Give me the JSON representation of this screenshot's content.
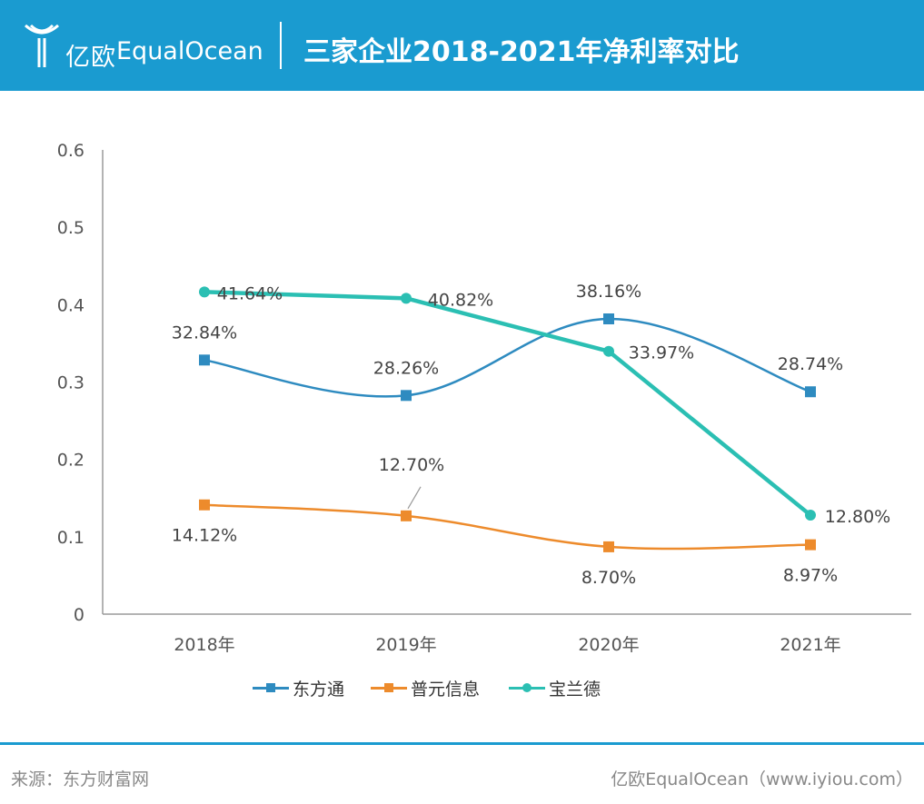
{
  "header": {
    "brand_cn": "亿欧",
    "brand_en": "EqualOcean",
    "title": "三家企业2018-2021年净利率对比"
  },
  "chart_data": {
    "type": "line",
    "title": "三家企业2018-2021年净利率对比",
    "categories": [
      "2018年",
      "2019年",
      "2020年",
      "2021年"
    ],
    "ylim": [
      0,
      0.6
    ],
    "yticks": [
      "0",
      "0.1",
      "0.2",
      "0.3",
      "0.4",
      "0.5",
      "0.6"
    ],
    "grid": false,
    "legend_position": "bottom",
    "series": [
      {
        "name": "东方通",
        "values": [
          0.3284,
          0.2826,
          0.3816,
          0.2874
        ],
        "labels": [
          "32.84%",
          "28.26%",
          "38.16%",
          "28.74%"
        ],
        "color": "#2e8bc0",
        "marker": "square",
        "smooth": true
      },
      {
        "name": "普元信息",
        "values": [
          0.1412,
          0.127,
          0.087,
          0.0897
        ],
        "labels": [
          "14.12%",
          "12.70%",
          "8.70%",
          "8.97%"
        ],
        "color": "#ed8b2c",
        "marker": "square",
        "smooth": true
      },
      {
        "name": "宝兰德",
        "values": [
          0.4164,
          0.4082,
          0.3397,
          0.128
        ],
        "labels": [
          "41.64%",
          "40.82%",
          "33.97%",
          "12.80%"
        ],
        "color": "#2bbfb3",
        "marker": "circle",
        "smooth": false
      }
    ]
  },
  "footer": {
    "source": "来源：东方财富网",
    "site": "亿欧EqualOcean（www.iyiou.com）"
  }
}
